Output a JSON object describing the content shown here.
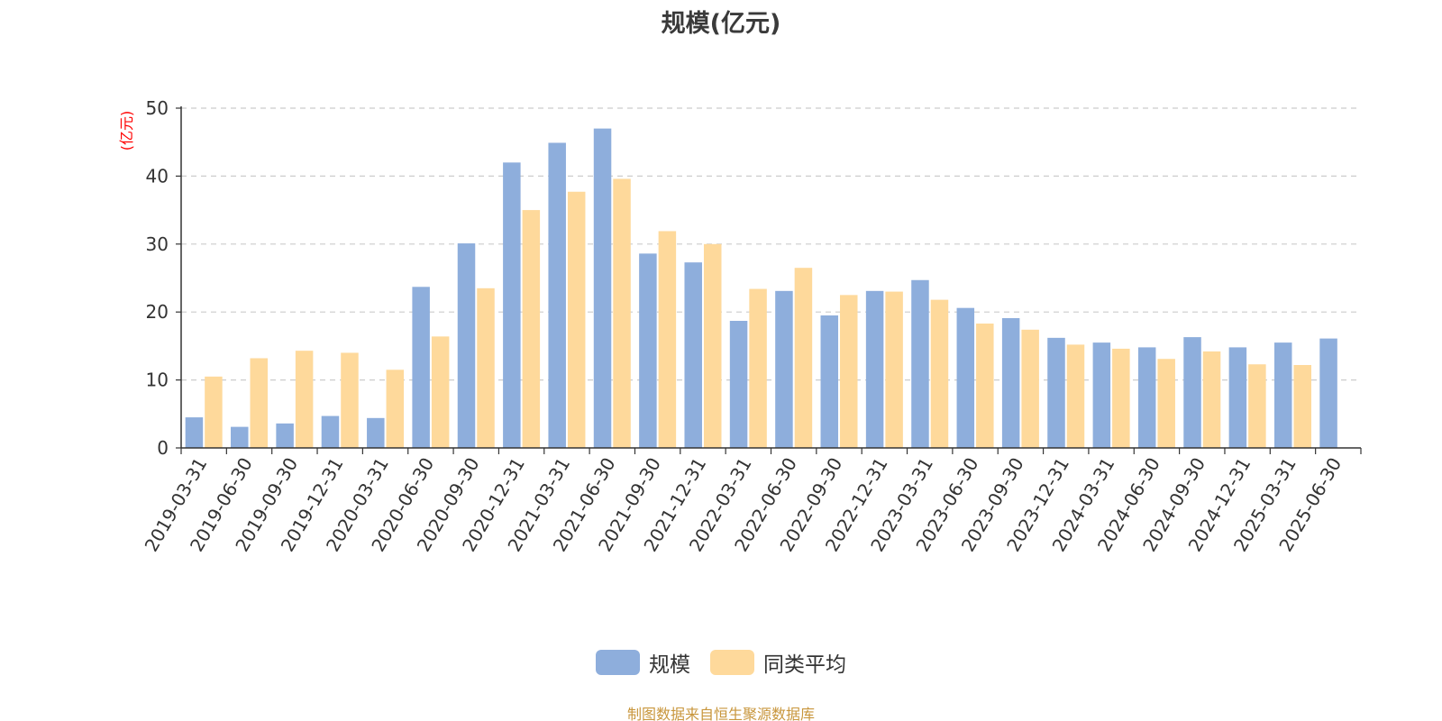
{
  "title": "规模(亿元)",
  "source_note": "制图数据来自恒生聚源数据库",
  "colors": {
    "series_1": "#8eaedc",
    "series_2": "#fed99b",
    "axis": "#333333",
    "grid": "#cccccc",
    "ylabel": "#ff0000"
  },
  "chart_data": {
    "type": "bar",
    "title": "规模(亿元)",
    "ylabel": "(亿元)",
    "xlabel": "",
    "ylim": [
      0,
      50
    ],
    "yticks": [
      0,
      10,
      20,
      30,
      40,
      50
    ],
    "grid": true,
    "legend_position": "bottom-center",
    "categories": [
      "2019-03-31",
      "2019-06-30",
      "2019-09-30",
      "2019-12-31",
      "2020-03-31",
      "2020-06-30",
      "2020-09-30",
      "2020-12-31",
      "2021-03-31",
      "2021-06-30",
      "2021-09-30",
      "2021-12-31",
      "2022-03-31",
      "2022-06-30",
      "2022-09-30",
      "2022-12-31",
      "2023-03-31",
      "2023-06-30",
      "2023-09-30",
      "2023-12-31",
      "2024-03-31",
      "2024-06-30",
      "2024-09-30",
      "2024-12-31",
      "2025-03-31",
      "2025-06-30"
    ],
    "series": [
      {
        "name": "规模",
        "values": [
          4.5,
          3.1,
          3.6,
          4.7,
          4.4,
          23.7,
          30.1,
          42.0,
          44.9,
          47.0,
          28.6,
          27.3,
          18.7,
          23.1,
          19.5,
          23.1,
          24.7,
          20.6,
          19.1,
          16.2,
          15.5,
          14.8,
          16.3,
          14.8,
          15.5,
          16.1
        ]
      },
      {
        "name": "同类平均",
        "values": [
          10.5,
          13.2,
          14.3,
          14.0,
          11.5,
          16.4,
          23.5,
          35.0,
          37.7,
          39.6,
          31.9,
          30.0,
          23.4,
          26.5,
          22.5,
          23.0,
          21.8,
          18.3,
          17.4,
          15.2,
          14.6,
          13.1,
          14.2,
          12.3,
          12.2,
          null
        ]
      }
    ]
  }
}
